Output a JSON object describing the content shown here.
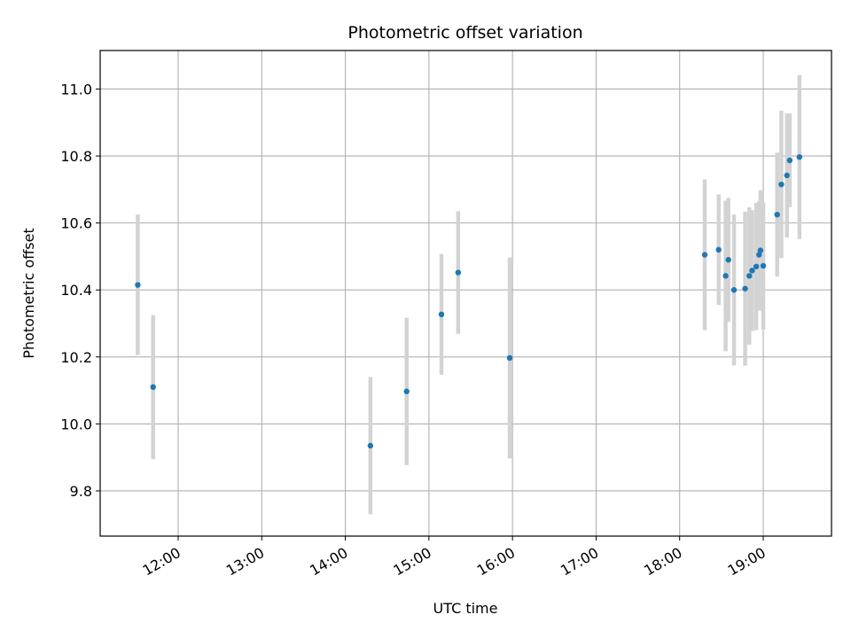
{
  "chart_data": {
    "type": "scatter",
    "title": "Photometric offset variation",
    "xlabel": "UTC time",
    "ylabel": "Photometric offset",
    "xlim": [
      "11:04",
      "19:49"
    ],
    "ylim": [
      9.665,
      11.115
    ],
    "x_ticks": [
      "12:00",
      "13:00",
      "14:00",
      "15:00",
      "16:00",
      "17:00",
      "18:00",
      "19:00"
    ],
    "y_ticks": [
      "9.8",
      "10.0",
      "10.2",
      "10.4",
      "10.6",
      "10.8",
      "11.0"
    ],
    "grid": true,
    "x_tick_label_rotation": "30 degrees",
    "series": [
      {
        "marker_color": "#1f77b4",
        "errorbar_color": "#d3d3d3",
        "points": [
          {
            "x": "11:31",
            "y": 10.415,
            "err": 0.21
          },
          {
            "x": "11:42",
            "y": 10.11,
            "err": 0.215
          },
          {
            "x": "14:18",
            "y": 9.935,
            "err": 0.205
          },
          {
            "x": "14:44",
            "y": 10.097,
            "err": 0.22
          },
          {
            "x": "15:09",
            "y": 10.327,
            "err": 0.18
          },
          {
            "x": "15:21",
            "y": 10.452,
            "err": 0.183
          },
          {
            "x": "15:58",
            "y": 10.197,
            "err": 0.3
          },
          {
            "x": "18:18",
            "y": 10.505,
            "err": 0.225
          },
          {
            "x": "18:28",
            "y": 10.52,
            "err": 0.165
          },
          {
            "x": "18:33",
            "y": 10.442,
            "err": 0.225
          },
          {
            "x": "18:35",
            "y": 10.49,
            "err": 0.185
          },
          {
            "x": "18:39",
            "y": 10.4,
            "err": 0.225
          },
          {
            "x": "18:47",
            "y": 10.404,
            "err": 0.23
          },
          {
            "x": "18:50",
            "y": 10.442,
            "err": 0.205
          },
          {
            "x": "18:52",
            "y": 10.458,
            "err": 0.18
          },
          {
            "x": "18:55",
            "y": 10.47,
            "err": 0.19
          },
          {
            "x": "18:57",
            "y": 10.505,
            "err": 0.16
          },
          {
            "x": "18:58",
            "y": 10.518,
            "err": 0.18
          },
          {
            "x": "19:00",
            "y": 10.472,
            "err": 0.19
          },
          {
            "x": "19:10",
            "y": 10.625,
            "err": 0.185
          },
          {
            "x": "19:13",
            "y": 10.715,
            "err": 0.22
          },
          {
            "x": "19:17",
            "y": 10.742,
            "err": 0.185
          },
          {
            "x": "19:19",
            "y": 10.787,
            "err": 0.14
          },
          {
            "x": "19:26",
            "y": 10.797,
            "err": 0.245
          }
        ]
      }
    ]
  }
}
